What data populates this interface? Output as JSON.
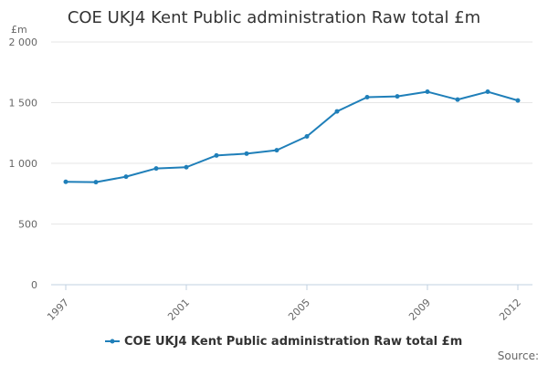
{
  "chart_data": {
    "type": "line",
    "title": "COE UKJ4 Kent Public administration Raw total £m",
    "unit_label": "£m",
    "x": [
      1997,
      1998,
      1999,
      2000,
      2001,
      2002,
      2003,
      2004,
      2005,
      2006,
      2007,
      2008,
      2009,
      2010,
      2011,
      2012
    ],
    "x_tick_labels": [
      "1997",
      "2001",
      "2005",
      "2009",
      "2012"
    ],
    "y_tick_labels": [
      "0",
      "500",
      "1 000",
      "1 500",
      "2 000"
    ],
    "ylim": [
      0,
      2000
    ],
    "grid": true,
    "legend_position": "bottom-center",
    "series": [
      {
        "name": "COE UKJ4 Kent Public administration Raw total £m",
        "color": "#1f7fb9",
        "values": [
          848,
          845,
          890,
          958,
          968,
          1065,
          1080,
          1108,
          1222,
          1428,
          1545,
          1552,
          1590,
          1525,
          1590,
          1518
        ]
      }
    ],
    "source": "Source:"
  }
}
